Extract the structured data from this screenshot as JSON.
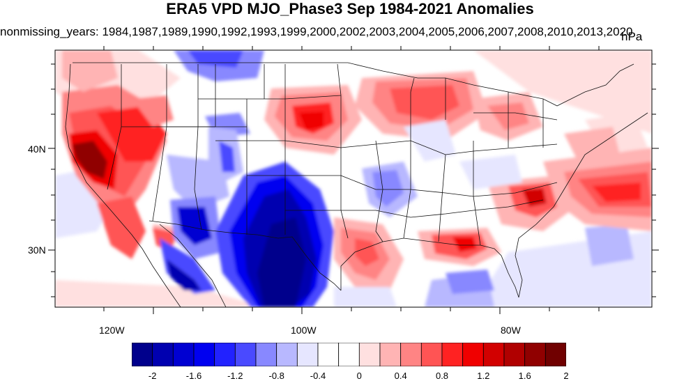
{
  "title": "ERA5 VPD MJO_Phase3 Sep 1984-2021 Anomalies",
  "subtitle": "nonmissing_years: 1984,1987,1989,1990,1992,1993,1999,2000,2002,2003,2004,2005,2006,2007,2008,2010,2013,2020",
  "units": "hPa",
  "map": {
    "projection": "cylindrical",
    "lon_range": [
      -127,
      -65
    ],
    "lat_range": [
      24,
      50
    ],
    "lat_ticks": [
      {
        "value": 40,
        "label": "40N"
      },
      {
        "value": 30,
        "label": "30N"
      }
    ],
    "lon_ticks": [
      {
        "value": -120,
        "label": "120W"
      },
      {
        "value": -100,
        "label": "100W"
      },
      {
        "value": -80,
        "label": "80W"
      }
    ],
    "boundaries": "US states, Canada, Mexico coastlines"
  },
  "colorbar": {
    "labels": [
      "-2",
      "-1.6",
      "-1.2",
      "-0.8",
      "-0.4",
      "0",
      "0.4",
      "0.8",
      "1.2",
      "1.6",
      "2"
    ],
    "colors": [
      "#00008c",
      "#0000b0",
      "#0000d2",
      "#0000f0",
      "#2222ff",
      "#4a4aff",
      "#8888ff",
      "#b8b8ff",
      "#e6e6ff",
      "#ffffff",
      "#ffffff",
      "#ffe0e0",
      "#ffb4b4",
      "#ff8484",
      "#ff5454",
      "#ff2222",
      "#f00000",
      "#d20000",
      "#b00000",
      "#900000",
      "#700000"
    ]
  }
}
